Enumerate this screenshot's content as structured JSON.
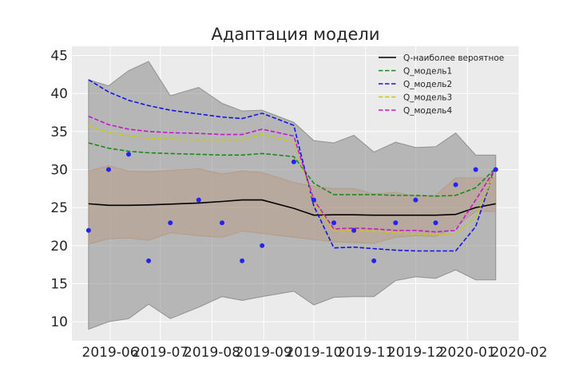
{
  "chart_data": {
    "type": "line",
    "title": "Адаптация модели",
    "xlabel": "",
    "ylabel": "",
    "xlim": [
      "2019-05-09",
      "2020-02-01"
    ],
    "ylim": [
      7.5,
      46.2
    ],
    "grid": true,
    "legend_position": "top-right",
    "x_tick_labels": [
      "2019-06",
      "2019-07",
      "2019-08",
      "2019-09",
      "2019-10",
      "2019-11",
      "2019-12",
      "2020-01",
      "2020-02"
    ],
    "x_tick_dates": [
      "2019-06-01",
      "2019-07-01",
      "2019-08-01",
      "2019-09-01",
      "2019-10-01",
      "2019-11-01",
      "2019-12-01",
      "2020-01-01",
      "2020-02-01"
    ],
    "y_ticks": [
      10,
      15,
      20,
      25,
      30,
      35,
      40,
      45
    ],
    "x": [
      "2019-05-19",
      "2019-05-31",
      "2019-06-12",
      "2019-06-24",
      "2019-07-07",
      "2019-07-24",
      "2019-08-07",
      "2019-08-19",
      "2019-08-31",
      "2019-09-19",
      "2019-10-01",
      "2019-10-13",
      "2019-10-25",
      "2019-11-06",
      "2019-11-19",
      "2019-12-01",
      "2019-12-13",
      "2019-12-25",
      "2020-01-06",
      "2020-01-18"
    ],
    "series": [
      {
        "name": "Q-наиболее вероятное",
        "color": "#000000",
        "dash": "solid",
        "values": [
          25.5,
          25.3,
          25.3,
          25.35,
          25.45,
          25.6,
          25.8,
          26.0,
          26.0,
          24.9,
          24.0,
          24.05,
          24.05,
          24.0,
          24.0,
          24.0,
          24.0,
          24.1,
          25.0,
          25.5
        ]
      },
      {
        "name": "Q_модель1",
        "color": "#1a8a1a",
        "dash": "dashed",
        "values": [
          33.5,
          32.8,
          32.4,
          32.2,
          32.1,
          32.0,
          31.9,
          31.9,
          32.1,
          31.7,
          28.2,
          26.7,
          26.7,
          26.7,
          26.6,
          26.6,
          26.5,
          26.6,
          27.6,
          30.2
        ]
      },
      {
        "name": "Q_модель2",
        "color": "#1515dd",
        "dash": "dashed",
        "values": [
          41.8,
          40.2,
          39.1,
          38.4,
          37.8,
          37.3,
          36.9,
          36.7,
          37.4,
          35.8,
          25.2,
          19.7,
          19.8,
          19.6,
          19.4,
          19.3,
          19.3,
          19.3,
          22.5,
          30.5
        ]
      },
      {
        "name": "Q_модель3",
        "color": "#c8c81a",
        "dash": "dashed",
        "values": [
          35.7,
          34.9,
          34.4,
          34.1,
          34.0,
          33.9,
          33.9,
          33.9,
          34.6,
          33.6,
          25.7,
          21.9,
          22.0,
          21.9,
          21.7,
          21.5,
          21.5,
          21.5,
          23.7,
          30.0
        ]
      },
      {
        "name": "Q_модель4",
        "color": "#c41ac4",
        "dash": "dashed",
        "values": [
          37.0,
          35.9,
          35.3,
          35.0,
          34.85,
          34.75,
          34.6,
          34.6,
          35.3,
          34.4,
          26.0,
          22.2,
          22.3,
          22.2,
          22.0,
          22.0,
          21.8,
          22.0,
          26.0,
          30.2
        ]
      }
    ],
    "outer_band": {
      "color": "#8a8a8a",
      "upper": [
        41.8,
        41.0,
        43.0,
        44.2,
        39.7,
        40.8,
        38.7,
        37.7,
        37.8,
        36.2,
        33.8,
        33.5,
        34.5,
        32.3,
        33.6,
        32.9,
        33.0,
        34.8,
        31.9,
        31.9
      ],
      "lower": [
        9.0,
        10.0,
        10.4,
        12.3,
        10.4,
        11.9,
        13.3,
        12.8,
        13.3,
        14.0,
        12.2,
        13.2,
        13.3,
        13.3,
        15.4,
        15.9,
        15.7,
        16.8,
        15.5,
        15.5
      ]
    },
    "inner_band": {
      "color": "#b89880",
      "upper": [
        29.8,
        30.5,
        29.8,
        29.7,
        29.9,
        30.1,
        29.4,
        29.8,
        29.6,
        28.3,
        27.8,
        27.5,
        27.5,
        26.8,
        27.0,
        26.5,
        26.6,
        28.9,
        28.9,
        28.9
      ],
      "lower": [
        20.2,
        20.9,
        21.0,
        20.7,
        21.7,
        21.3,
        21.1,
        21.9,
        21.6,
        21.1,
        20.8,
        20.5,
        20.4,
        20.3,
        21.1,
        21.3,
        21.2,
        22.5,
        24.5,
        24.5
      ]
    },
    "points": {
      "color": "#2424ee",
      "x": [
        "2019-05-19",
        "2019-05-31",
        "2019-06-12",
        "2019-06-24",
        "2019-07-07",
        "2019-07-24",
        "2019-08-07",
        "2019-08-19",
        "2019-08-31",
        "2019-09-19",
        "2019-10-01",
        "2019-10-13",
        "2019-10-25",
        "2019-11-06",
        "2019-11-19",
        "2019-12-01",
        "2019-12-13",
        "2019-12-25",
        "2020-01-06",
        "2020-01-18"
      ],
      "y": [
        22,
        30,
        32,
        18,
        23,
        26,
        23,
        18,
        20,
        31,
        26,
        23,
        22,
        18,
        23,
        26,
        23,
        28,
        30,
        30
      ]
    }
  }
}
